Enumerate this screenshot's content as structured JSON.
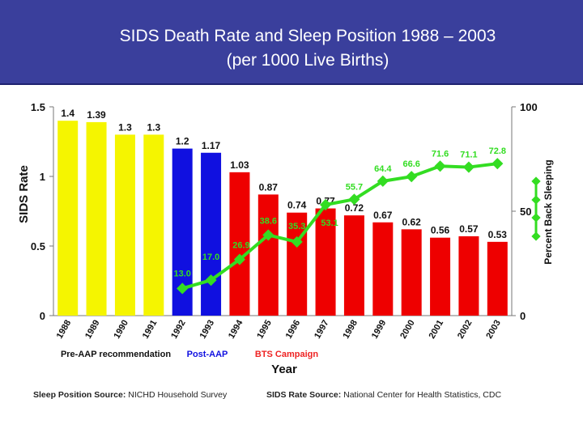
{
  "header": {
    "title_line1": "SIDS Death Rate and Sleep Position 1988 – 2003",
    "title_line2": "(per 1000 Live Births)"
  },
  "colors": {
    "header_bg": "#3a3f9c",
    "pre_aap": "#f5f500",
    "post_aap": "#1010e0",
    "bts": "#ee0000",
    "line": "#33dd22",
    "campaign_label_blue": "#1010e0",
    "campaign_label_red": "#ee2222"
  },
  "chart_data": {
    "type": "bar",
    "categories": [
      "1988",
      "1989",
      "1990",
      "1991",
      "1992",
      "1993",
      "1994",
      "1995",
      "1996",
      "1997",
      "1998",
      "1999",
      "2000",
      "2001",
      "2002",
      "2003"
    ],
    "series": [
      {
        "name": "SIDS Rate",
        "axis": "left",
        "values": [
          1.4,
          1.39,
          1.3,
          1.3,
          1.2,
          1.17,
          1.03,
          0.87,
          0.74,
          0.77,
          0.72,
          0.67,
          0.62,
          0.56,
          0.57,
          0.53
        ],
        "labels": [
          "1.4",
          "1.39",
          "1.3",
          "1.3",
          "1.2",
          "1.17",
          "1.03",
          "0.87",
          "0.74",
          "0.77",
          "0.72",
          "0.67",
          "0.62",
          "0.56",
          "0.57",
          "0.53"
        ],
        "bar_groups": [
          "pre",
          "pre",
          "pre",
          "pre",
          "post",
          "post",
          "bts",
          "bts",
          "bts",
          "bts",
          "bts",
          "bts",
          "bts",
          "bts",
          "bts",
          "bts"
        ]
      },
      {
        "name": "Percent Back Sleeping",
        "axis": "right",
        "type": "line",
        "x": [
          "1992",
          "1993",
          "1994",
          "1995",
          "1996",
          "1997",
          "1998",
          "1999",
          "2000",
          "2001",
          "2002",
          "2003"
        ],
        "values": [
          13.0,
          17.0,
          26.9,
          38.6,
          35.3,
          53.1,
          55.7,
          64.4,
          66.6,
          71.6,
          71.1,
          72.8
        ],
        "labels": [
          "13.0",
          "17.0",
          "26.9",
          "38.6",
          "35.3",
          "53.1",
          "55.7",
          "64.4",
          "66.6",
          "71.6",
          "71.1",
          "72.8"
        ]
      }
    ],
    "title": "SIDS Death Rate and Sleep Position 1988 – 2003 (per 1000 Live Births)",
    "xlabel": "Year",
    "ylabel": "SIDS Rate",
    "y2label": "Percent Back Sleeping",
    "ylim": [
      0,
      1.5
    ],
    "yticks": [
      "0",
      "0.5",
      "1",
      "1.5"
    ],
    "y2lim": [
      0,
      100
    ],
    "y2ticks": [
      "0",
      "50",
      "100"
    ],
    "period_labels": [
      "Pre-AAP recommendation",
      "Post-AAP",
      "BTS Campaign"
    ]
  },
  "footer": {
    "left_label": "Sleep Position Source:",
    "left_source": "NICHD Household Survey",
    "right_label": "SIDS Rate Source:",
    "right_source": "National Center for Health Statistics, CDC"
  }
}
